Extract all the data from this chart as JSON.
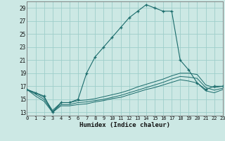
{
  "xlabel": "Humidex (Indice chaleur)",
  "background_color": "#cce8e4",
  "grid_color": "#9ececa",
  "line_color": "#1a6b6b",
  "hours": [
    0,
    1,
    2,
    3,
    4,
    5,
    6,
    7,
    8,
    9,
    10,
    11,
    12,
    13,
    14,
    15,
    16,
    17,
    18,
    19,
    20,
    21,
    22,
    23
  ],
  "main_line": [
    16.5,
    16.0,
    15.5,
    13.0,
    14.5,
    14.5,
    15.0,
    19.0,
    21.5,
    23.0,
    24.5,
    26.0,
    27.5,
    28.5,
    29.5,
    29.0,
    28.5,
    28.5,
    21.0,
    19.5,
    17.5,
    16.5,
    17.0,
    17.0
  ],
  "line2": [
    16.5,
    16.0,
    15.3,
    13.3,
    14.5,
    14.5,
    14.8,
    14.9,
    15.1,
    15.4,
    15.7,
    16.0,
    16.4,
    16.9,
    17.3,
    17.7,
    18.1,
    18.6,
    19.0,
    19.0,
    18.8,
    17.2,
    16.8,
    17.0
  ],
  "line3": [
    16.5,
    15.8,
    15.0,
    13.1,
    14.2,
    14.2,
    14.5,
    14.6,
    14.8,
    15.0,
    15.3,
    15.6,
    16.0,
    16.4,
    16.8,
    17.2,
    17.6,
    18.1,
    18.5,
    18.4,
    18.2,
    16.8,
    16.4,
    16.7
  ],
  "line4": [
    16.5,
    15.5,
    14.7,
    13.0,
    14.0,
    14.0,
    14.2,
    14.3,
    14.6,
    14.8,
    15.1,
    15.3,
    15.7,
    16.1,
    16.5,
    16.8,
    17.2,
    17.6,
    18.0,
    17.8,
    17.5,
    16.3,
    16.0,
    16.5
  ],
  "xlim": [
    0,
    23
  ],
  "ylim": [
    12.5,
    30.0
  ],
  "yticks": [
    13,
    15,
    17,
    19,
    21,
    23,
    25,
    27,
    29
  ],
  "xticks": [
    0,
    1,
    2,
    3,
    4,
    5,
    6,
    7,
    8,
    9,
    10,
    11,
    12,
    13,
    14,
    15,
    16,
    17,
    18,
    19,
    20,
    21,
    22,
    23
  ]
}
